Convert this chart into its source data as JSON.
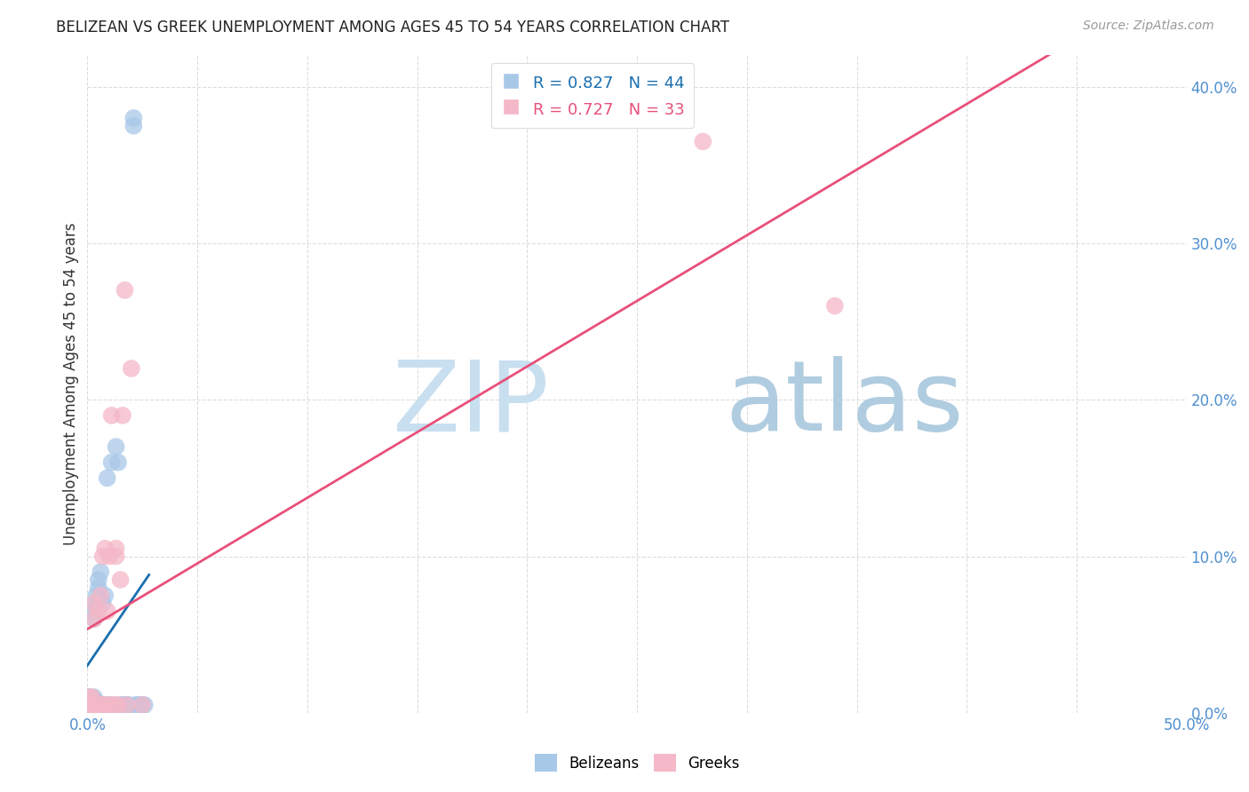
{
  "title": "BELIZEAN VS GREEK UNEMPLOYMENT AMONG AGES 45 TO 54 YEARS CORRELATION CHART",
  "source": "Source: ZipAtlas.com",
  "ylabel": "Unemployment Among Ages 45 to 54 years",
  "xlim": [
    0.0,
    0.5
  ],
  "ylim": [
    0.0,
    0.42
  ],
  "xticks": [
    0.0,
    0.05,
    0.1,
    0.15,
    0.2,
    0.25,
    0.3,
    0.35,
    0.4,
    0.45,
    0.5
  ],
  "xtick_labels": [
    "0.0%",
    "",
    "",
    "",
    "",
    "",
    "",
    "",
    "",
    "",
    "50.0%"
  ],
  "yticks": [
    0.0,
    0.1,
    0.2,
    0.3,
    0.4
  ],
  "ytick_labels": [
    "0.0%",
    "10.0%",
    "20.0%",
    "30.0%",
    "40.0%"
  ],
  "belizean_color": "#a8c8e8",
  "greek_color": "#f4b8c8",
  "belizean_R": 0.827,
  "belizean_N": 44,
  "greek_R": 0.727,
  "greek_N": 33,
  "watermark_zip": "ZIP",
  "watermark_atlas": "atlas",
  "belizean_scatter_x": [
    0.0,
    0.0,
    0.001,
    0.001,
    0.002,
    0.002,
    0.002,
    0.002,
    0.003,
    0.003,
    0.003,
    0.003,
    0.003,
    0.003,
    0.004,
    0.004,
    0.004,
    0.004,
    0.005,
    0.005,
    0.006,
    0.007,
    0.007,
    0.008,
    0.008,
    0.009,
    0.01,
    0.011,
    0.012,
    0.013,
    0.014,
    0.015,
    0.016,
    0.017,
    0.018,
    0.019,
    0.021,
    0.021,
    0.022,
    0.023,
    0.024,
    0.025,
    0.026,
    0.027
  ],
  "belizean_scatter_y": [
    0.005,
    0.01,
    0.005,
    0.01,
    0.005,
    0.007,
    0.008,
    0.009,
    0.005,
    0.007,
    0.008,
    0.01,
    0.06,
    0.065,
    0.005,
    0.007,
    0.07,
    0.075,
    0.08,
    0.085,
    0.09,
    0.005,
    0.07,
    0.005,
    0.075,
    0.15,
    0.005,
    0.16,
    0.005,
    0.17,
    0.16,
    0.005,
    0.005,
    0.005,
    0.005,
    0.005,
    0.375,
    0.38,
    0.005,
    0.005,
    0.005,
    0.005,
    0.005,
    -0.008
  ],
  "greek_scatter_x": [
    0.0,
    0.001,
    0.001,
    0.002,
    0.002,
    0.003,
    0.003,
    0.003,
    0.004,
    0.005,
    0.005,
    0.006,
    0.006,
    0.007,
    0.007,
    0.008,
    0.008,
    0.009,
    0.01,
    0.01,
    0.011,
    0.012,
    0.013,
    0.013,
    0.014,
    0.015,
    0.016,
    0.017,
    0.018,
    0.02,
    0.025,
    0.28,
    0.34
  ],
  "greek_scatter_y": [
    0.005,
    0.005,
    0.01,
    0.005,
    0.01,
    0.005,
    0.06,
    0.07,
    0.005,
    0.005,
    0.065,
    0.005,
    0.075,
    0.005,
    0.1,
    0.005,
    0.105,
    0.065,
    0.005,
    0.1,
    0.19,
    0.005,
    0.1,
    0.105,
    0.005,
    0.085,
    0.19,
    0.27,
    0.005,
    0.22,
    0.005,
    0.365,
    0.26
  ],
  "belizean_line_color": "#1a6faf",
  "greek_line_color": "#e8507a",
  "background_color": "#ffffff",
  "grid_color": "#dddddd",
  "tick_color": "#5090d0"
}
